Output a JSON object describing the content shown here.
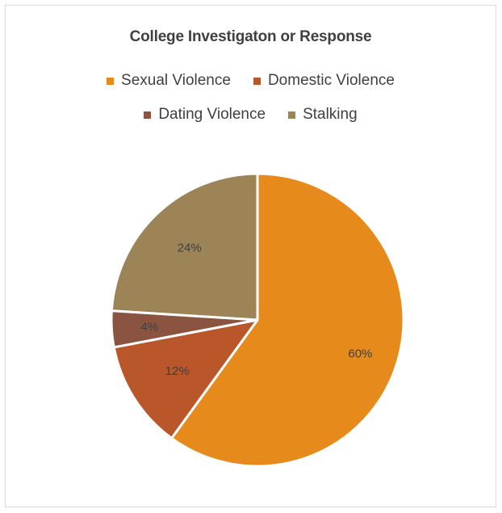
{
  "chart_data": {
    "type": "pie",
    "title": "College Investigaton or Response",
    "categories": [
      "Sexual Violence",
      "Domestic Violence",
      "Dating Violence",
      "Stalking"
    ],
    "values": [
      60,
      12,
      4,
      24
    ],
    "data_labels": [
      "60%",
      "12%",
      "4%",
      "24%"
    ],
    "colors": [
      "#e68a1c",
      "#b9562a",
      "#8a5440",
      "#9c8456"
    ],
    "legend_position": "top",
    "start_angle_deg": 0,
    "direction": "clockwise"
  }
}
